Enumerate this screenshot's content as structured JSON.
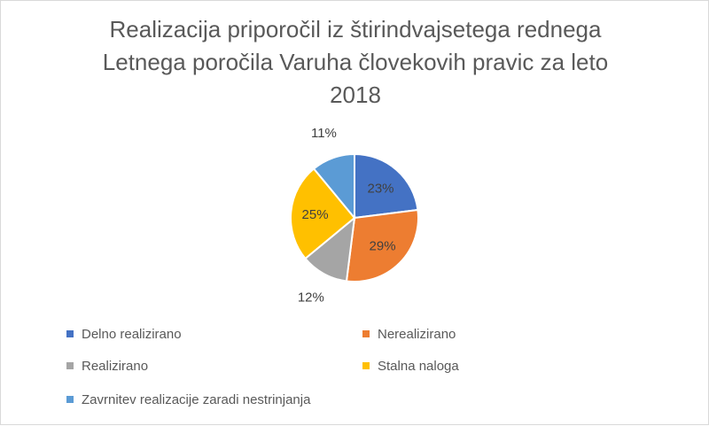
{
  "chart_data": {
    "type": "pie",
    "title_lines": [
      "Realizacija priporočil iz štirindvajsetega rednega",
      "Letnega poročila Varuha človekovih pravic za leto",
      "2018"
    ],
    "slices": [
      {
        "label": "Delno realizirano",
        "value": 23,
        "value_label": "23%",
        "color": "#4472C4"
      },
      {
        "label": "Nerealizirano",
        "value": 29,
        "value_label": "29%",
        "color": "#ED7D31"
      },
      {
        "label": "Realizirano",
        "value": 12,
        "value_label": "12%",
        "color": "#A5A5A5"
      },
      {
        "label": "Stalna naloga",
        "value": 25,
        "value_label": "25%",
        "color": "#FFC000"
      },
      {
        "label": "Zavrnitev realizacije zaradi nestrinjanja",
        "value": 11,
        "value_label": "11%",
        "color": "#5B9BD5"
      }
    ],
    "legend_position": "bottom"
  }
}
